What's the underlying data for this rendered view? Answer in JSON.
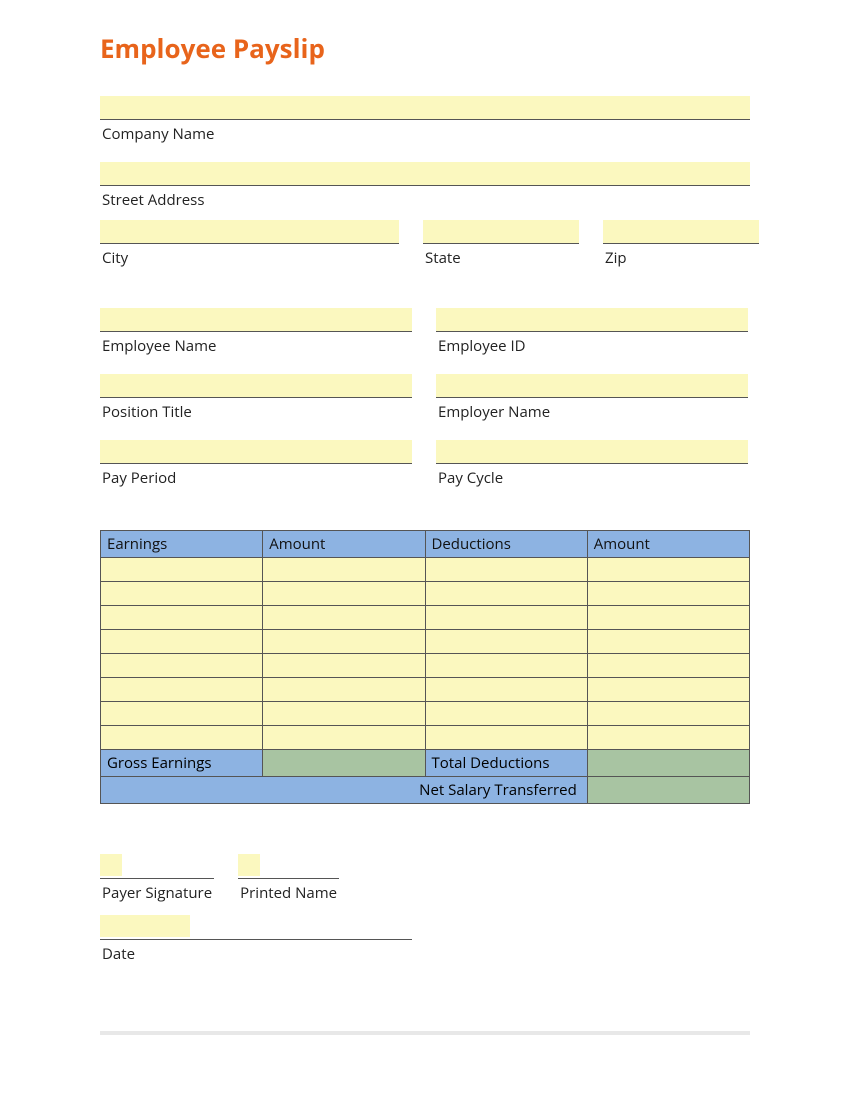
{
  "title": "Employee Payslip",
  "colors": {
    "title": "#e8641b",
    "input_bg": "#fbf8bf",
    "table_header_bg": "#8db3e2",
    "table_total_value_bg": "#a8c4a2",
    "border": "#555555",
    "footer_rule": "#e8e8e8",
    "text": "#222222"
  },
  "company": {
    "name_label": "Company Name",
    "street_label": "Street Address",
    "city_label": "City",
    "state_label": "State",
    "zip_label": "Zip",
    "name_value": "",
    "street_value": "",
    "city_value": "",
    "state_value": "",
    "zip_value": ""
  },
  "employee": {
    "name_label": "Employee Name",
    "id_label": "Employee ID",
    "position_label": "Position Title",
    "employer_label": "Employer Name",
    "period_label": "Pay Period",
    "cycle_label": "Pay Cycle",
    "name_value": "",
    "id_value": "",
    "position_value": "",
    "employer_value": "",
    "period_value": "",
    "cycle_value": ""
  },
  "table": {
    "headers": {
      "earnings": "Earnings",
      "earnings_amount": "Amount",
      "deductions": "Deductions",
      "deductions_amount": "Amount"
    },
    "body_row_count": 8,
    "rows": [
      {
        "earning": "",
        "earning_amount": "",
        "deduction": "",
        "deduction_amount": ""
      },
      {
        "earning": "",
        "earning_amount": "",
        "deduction": "",
        "deduction_amount": ""
      },
      {
        "earning": "",
        "earning_amount": "",
        "deduction": "",
        "deduction_amount": ""
      },
      {
        "earning": "",
        "earning_amount": "",
        "deduction": "",
        "deduction_amount": ""
      },
      {
        "earning": "",
        "earning_amount": "",
        "deduction": "",
        "deduction_amount": ""
      },
      {
        "earning": "",
        "earning_amount": "",
        "deduction": "",
        "deduction_amount": ""
      },
      {
        "earning": "",
        "earning_amount": "",
        "deduction": "",
        "deduction_amount": ""
      },
      {
        "earning": "",
        "earning_amount": "",
        "deduction": "",
        "deduction_amount": ""
      }
    ],
    "totals": {
      "gross_label": "Gross Earnings",
      "gross_value": "",
      "deductions_label": "Total Deductions",
      "deductions_value": ""
    },
    "net": {
      "label": "Net Salary Transferred",
      "value": ""
    },
    "col_widths_percent": [
      25,
      25,
      25,
      25
    ]
  },
  "signature": {
    "payer_label": "Payer Signature",
    "printed_label": "Printed Name",
    "date_label": "Date",
    "payer_value": "",
    "printed_value": "",
    "date_value": ""
  }
}
